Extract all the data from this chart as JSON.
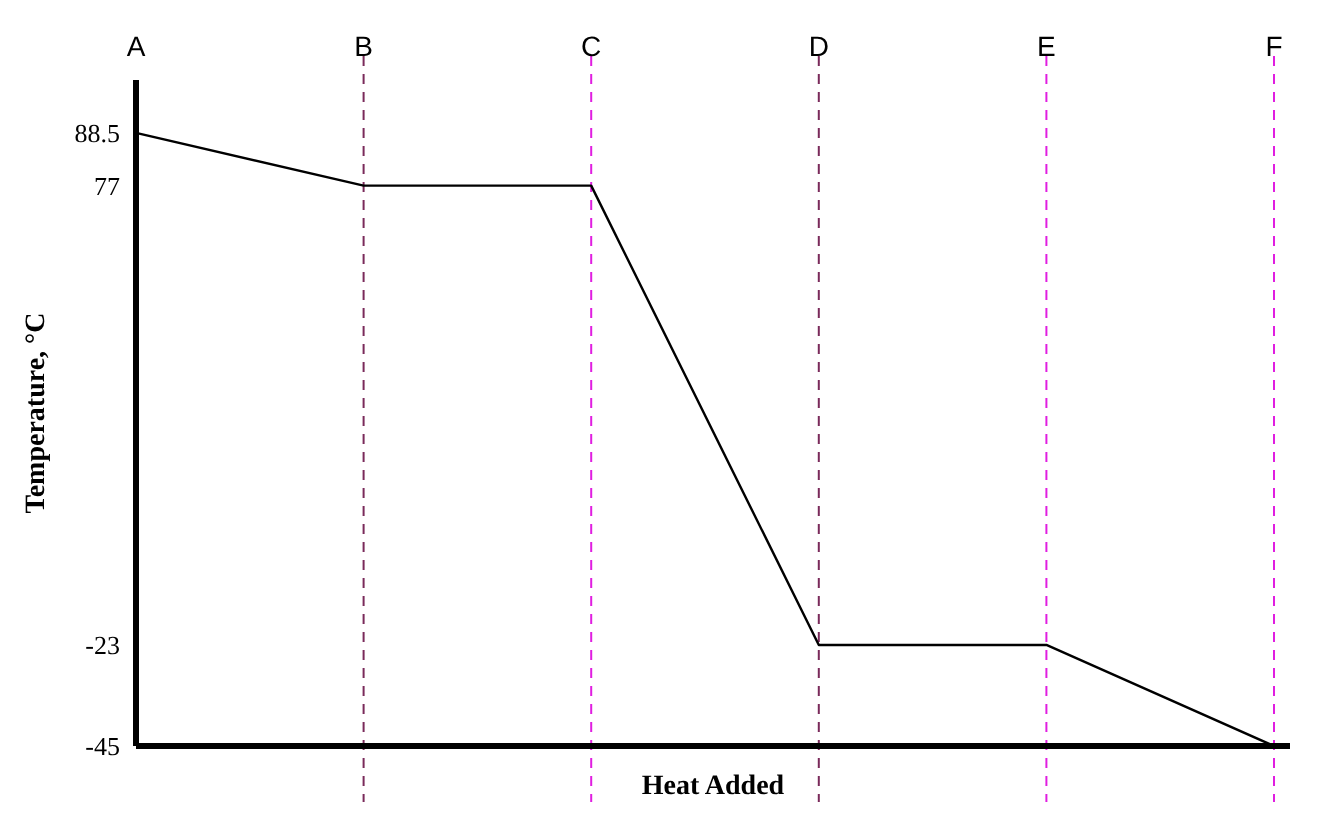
{
  "chart_data": {
    "type": "line",
    "xlabel": "Heat Added",
    "ylabel": "Temperature, °C",
    "categories": [
      "A",
      "B",
      "C",
      "D",
      "E",
      "F"
    ],
    "series": [
      {
        "color": "#000000",
        "values": [
          88.5,
          77,
          77,
          -23,
          -23,
          -45
        ]
      }
    ],
    "ylim": [
      -45,
      100
    ],
    "yticks": [
      88.5,
      77,
      -23,
      -45
    ],
    "grid": false,
    "marker": "none",
    "line_style": "solid",
    "ref_lines": [
      {
        "axis": "x",
        "value": "B",
        "color": "#7a2a5a",
        "line_style": "dashed"
      },
      {
        "axis": "x",
        "value": "C",
        "color": "#e01ee0",
        "line_style": "dashed"
      },
      {
        "axis": "x",
        "value": "D",
        "color": "#7a2a5a",
        "line_style": "dashed"
      },
      {
        "axis": "x",
        "value": "E",
        "color": "#e01ee0",
        "line_style": "dashed"
      },
      {
        "axis": "x",
        "value": "F",
        "color": "#e01ee0",
        "line_style": "dashed"
      }
    ]
  }
}
